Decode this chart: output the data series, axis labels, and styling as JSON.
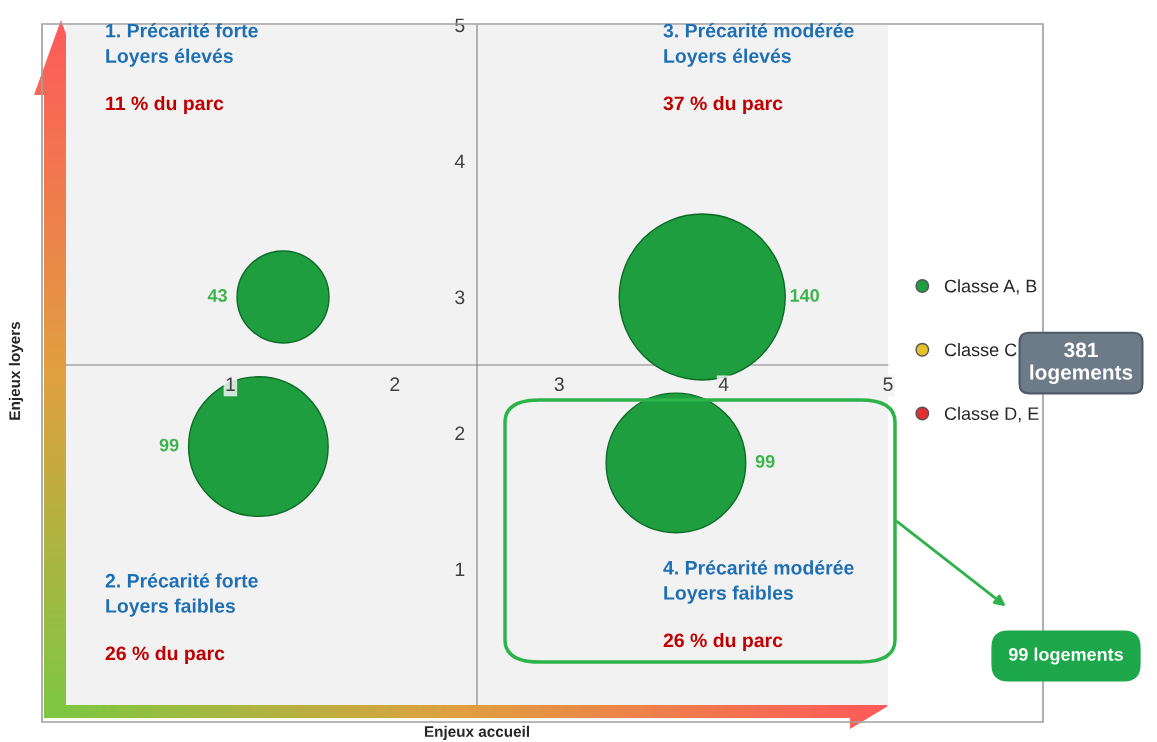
{
  "chart_data": {
    "type": "bubble",
    "xlabel": "Enjeux accueil",
    "ylabel": "Enjeux loyers",
    "xlim": [
      0,
      5
    ],
    "ylim": [
      0,
      5
    ],
    "xticks": [
      1,
      2,
      3,
      4,
      5
    ],
    "yticks": [
      1,
      2,
      3,
      4,
      5
    ],
    "grid": false,
    "legend": "right",
    "marker": "circle",
    "series": [
      {
        "name": "Classe A, B",
        "color": "#1e9e3e",
        "x": [
          1.32,
          1.17,
          3.87,
          3.71
        ],
        "values": [
          3.0,
          1.9,
          3.0,
          1.78
        ],
        "sizes": [
          43,
          99,
          140,
          99
        ],
        "value_labels": [
          "43",
          "99",
          "140",
          "99"
        ]
      },
      {
        "name": "Classe C",
        "color": "#e6c229"
      },
      {
        "name": "Classe D, E",
        "color": "#e03030"
      }
    ],
    "annotations": [
      "1. Précarité forte\nLoyers élevés",
      "11 % du parc",
      "3. Précarité modérée\nLoyers élevés",
      "37 % du parc",
      "2. Précarité forte\nLoyers faibles",
      "26 % du parc",
      "4. Précarité modérée\nLoyers faibles",
      "26 % du parc",
      "381\nlogements",
      "99 logements"
    ]
  }
}
